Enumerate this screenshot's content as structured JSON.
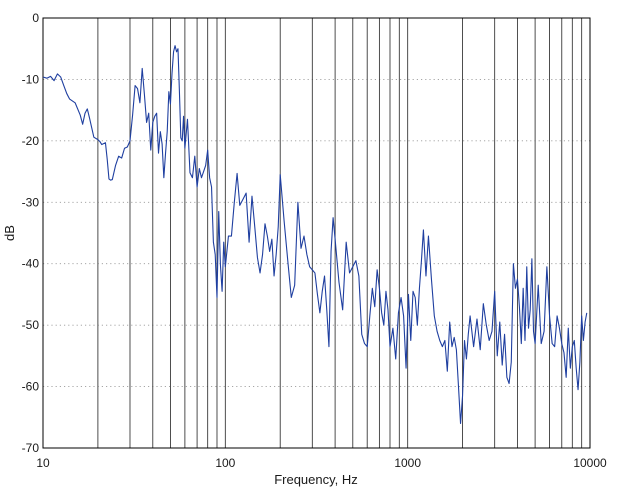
{
  "chart_data": {
    "type": "line",
    "title": "",
    "xlabel": "Frequency, Hz",
    "ylabel": "dB",
    "x_scale": "log",
    "xlim": [
      10,
      10000
    ],
    "ylim": [
      -70,
      0
    ],
    "x_ticks": [
      10,
      100,
      1000,
      10000
    ],
    "x_tick_labels": [
      "10",
      "100",
      "1000",
      "10000"
    ],
    "y_ticks": [
      0,
      -10,
      -20,
      -30,
      -40,
      -50,
      -60,
      -70
    ],
    "y_tick_labels": [
      "0",
      "-10",
      "-20",
      "-30",
      "-40",
      "-50",
      "-60",
      "-70"
    ],
    "grid": {
      "x": "solid vertical lines at decade subdivisions (20–90, 200–900, 2000–9000)",
      "y": "dotted horizontal lines at each y tick"
    },
    "line_color": "#1f3fa0",
    "series": [
      {
        "x": [
          10,
          10.5,
          11,
          11.5,
          12,
          12.5,
          13,
          13.5,
          14,
          15,
          16,
          16.5,
          17,
          17.5,
          18,
          19,
          20,
          20.5,
          21,
          22,
          22.5,
          23,
          23.5,
          24,
          25,
          26,
          27,
          28,
          29,
          30,
          31,
          32,
          33,
          34,
          35,
          36,
          37,
          38,
          39,
          40,
          41,
          42,
          43,
          44,
          45,
          46,
          47,
          48,
          49,
          50,
          51,
          52,
          53,
          54,
          55,
          56,
          57,
          58,
          59,
          60,
          62,
          64,
          66,
          68,
          70,
          72,
          74,
          76,
          78,
          80,
          82,
          84,
          86,
          88,
          90,
          92,
          94,
          96,
          98,
          100,
          104,
          108,
          112,
          116,
          120,
          125,
          130,
          135,
          140,
          145,
          150,
          155,
          160,
          165,
          170,
          175,
          180,
          185,
          190,
          195,
          200,
          210,
          220,
          230,
          240,
          250,
          260,
          270,
          280,
          290,
          300,
          310,
          320,
          330,
          340,
          350,
          360,
          370,
          380,
          390,
          400,
          420,
          440,
          460,
          480,
          500,
          520,
          540,
          560,
          580,
          600,
          620,
          640,
          660,
          680,
          700,
          720,
          740,
          760,
          780,
          800,
          830,
          860,
          890,
          920,
          950,
          980,
          1010,
          1040,
          1070,
          1100,
          1130,
          1160,
          1190,
          1220,
          1260,
          1300,
          1350,
          1400,
          1450,
          1500,
          1550,
          1600,
          1650,
          1700,
          1750,
          1800,
          1850,
          1900,
          1950,
          2000,
          2050,
          2100,
          2150,
          2200,
          2300,
          2400,
          2500,
          2600,
          2700,
          2800,
          2900,
          3000,
          3100,
          3200,
          3300,
          3400,
          3500,
          3600,
          3700,
          3800,
          3900,
          4000,
          4100,
          4200,
          4300,
          4400,
          4500,
          4600,
          4700,
          4800,
          4900,
          5000,
          5200,
          5400,
          5600,
          5800,
          6000,
          6200,
          6400,
          6600,
          6800,
          7000,
          7200,
          7400,
          7600,
          7800,
          8000,
          8200,
          8400,
          8600,
          8800,
          9000,
          9200,
          9400,
          9600
        ],
        "y": [
          -9.6,
          -9.8,
          -9.5,
          -10.2,
          -9.1,
          -9.6,
          -11,
          -12.3,
          -13.2,
          -13.8,
          -15.8,
          -17.3,
          -15.5,
          -14.8,
          -16.3,
          -19.4,
          -19.8,
          -20.1,
          -20.6,
          -20.3,
          -23,
          -26.2,
          -26.4,
          -26.3,
          -24,
          -22.5,
          -22.8,
          -21.2,
          -21,
          -20,
          -15.8,
          -11,
          -11.5,
          -13.8,
          -8.2,
          -12.5,
          -17,
          -15.5,
          -21.5,
          -17,
          -16,
          -15.5,
          -22,
          -18.5,
          -20.5,
          -26,
          -22,
          -18.5,
          -12,
          -14,
          -9,
          -5.5,
          -4.5,
          -5.5,
          -5,
          -12,
          -19.5,
          -20,
          -16,
          -21.2,
          -16.5,
          -25.2,
          -26,
          -22.5,
          -27.5,
          -24.5,
          -26,
          -25,
          -24,
          -21.5,
          -26,
          -27.5,
          -36.5,
          -38.5,
          -45.5,
          -31.5,
          -40.2,
          -44.5,
          -36.5,
          -40.5,
          -35.5,
          -35.5,
          -30,
          -25.3,
          -30.5,
          -29.5,
          -28.5,
          -36.5,
          -29,
          -34,
          -39,
          -41.5,
          -38.5,
          -33.5,
          -35.5,
          -38,
          -36,
          -42,
          -38.5,
          -34,
          -25.5,
          -33,
          -39.5,
          -45.5,
          -43.5,
          -30,
          -37.5,
          -35.5,
          -38.5,
          -40.5,
          -41,
          -41.5,
          -45,
          -48,
          -44.5,
          -42,
          -47.5,
          -53.5,
          -38,
          -32.5,
          -36,
          -43,
          -47.5,
          -36.5,
          -41.5,
          -40.5,
          -39.5,
          -42,
          -51.5,
          -53,
          -53.5,
          -48.5,
          -44,
          -47,
          -41,
          -44,
          -48,
          -50,
          -44.5,
          -47.5,
          -53.5,
          -50.5,
          -55.5,
          -48,
          -45.5,
          -48.5,
          -57,
          -45,
          -52.5,
          -44.5,
          -45.5,
          -50,
          -44,
          -39.5,
          -34.5,
          -42,
          -35.5,
          -42.5,
          -48.5,
          -51,
          -52.5,
          -53.5,
          -52.5,
          -57.5,
          -49.5,
          -53.5,
          -52,
          -54,
          -60,
          -66,
          -61.5,
          -52.5,
          -55.5,
          -51.5,
          -48.5,
          -53.5,
          -49,
          -54,
          -46.5,
          -50,
          -52.5,
          -51,
          -44.5,
          -55,
          -49.5,
          -56.5,
          -51.5,
          -58.5,
          -59.5,
          -56,
          -40,
          -44,
          -42.5,
          -47,
          -53,
          -44,
          -52.5,
          -40.5,
          -50.5,
          -47.5,
          -39.2,
          -51,
          -53,
          -43.5,
          -53,
          -51,
          -40.5,
          -48.5,
          -53,
          -53.5,
          -48.5,
          -50.5,
          -53,
          -54.5,
          -58.5,
          -50.5,
          -57,
          -53.5,
          -52.5,
          -57,
          -60.5,
          -56,
          -48.5,
          -52.5,
          -49.5,
          -48
        ]
      }
    ]
  }
}
